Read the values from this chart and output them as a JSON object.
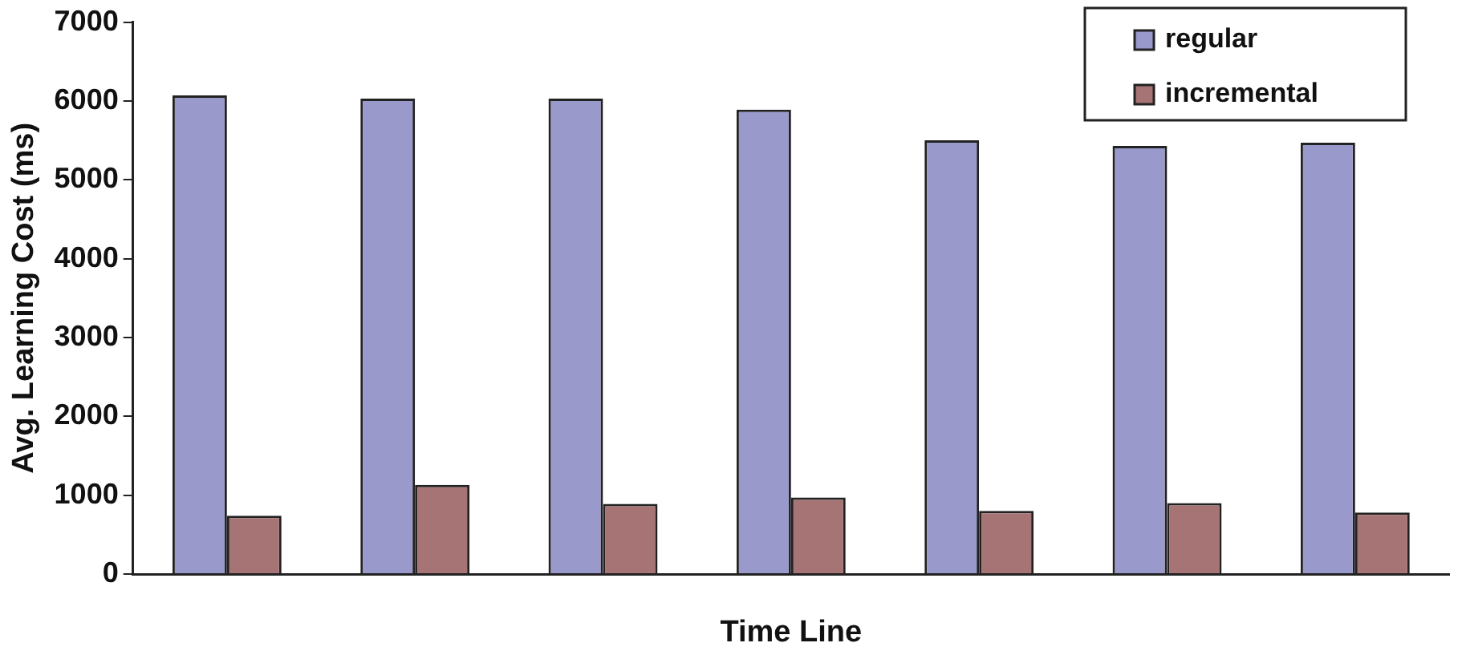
{
  "chart_data": {
    "type": "bar",
    "xlabel": "Time Line",
    "ylabel": "Avg. Learning Cost (ms)",
    "categories": [
      null,
      null,
      null,
      null,
      null,
      null,
      null
    ],
    "series": [
      {
        "name": "regular",
        "color": "#9999cc",
        "values": [
          6070,
          6030,
          6030,
          5890,
          5500,
          5430,
          5470
        ]
      },
      {
        "name": "incremental",
        "color": "#a67474",
        "values": [
          740,
          1130,
          890,
          970,
          800,
          900,
          780
        ]
      }
    ],
    "ylim": [
      0,
      7000
    ],
    "yticks": [
      0,
      1000,
      2000,
      3000,
      4000,
      5000,
      6000,
      7000
    ],
    "grid": false,
    "legend": "top right"
  }
}
